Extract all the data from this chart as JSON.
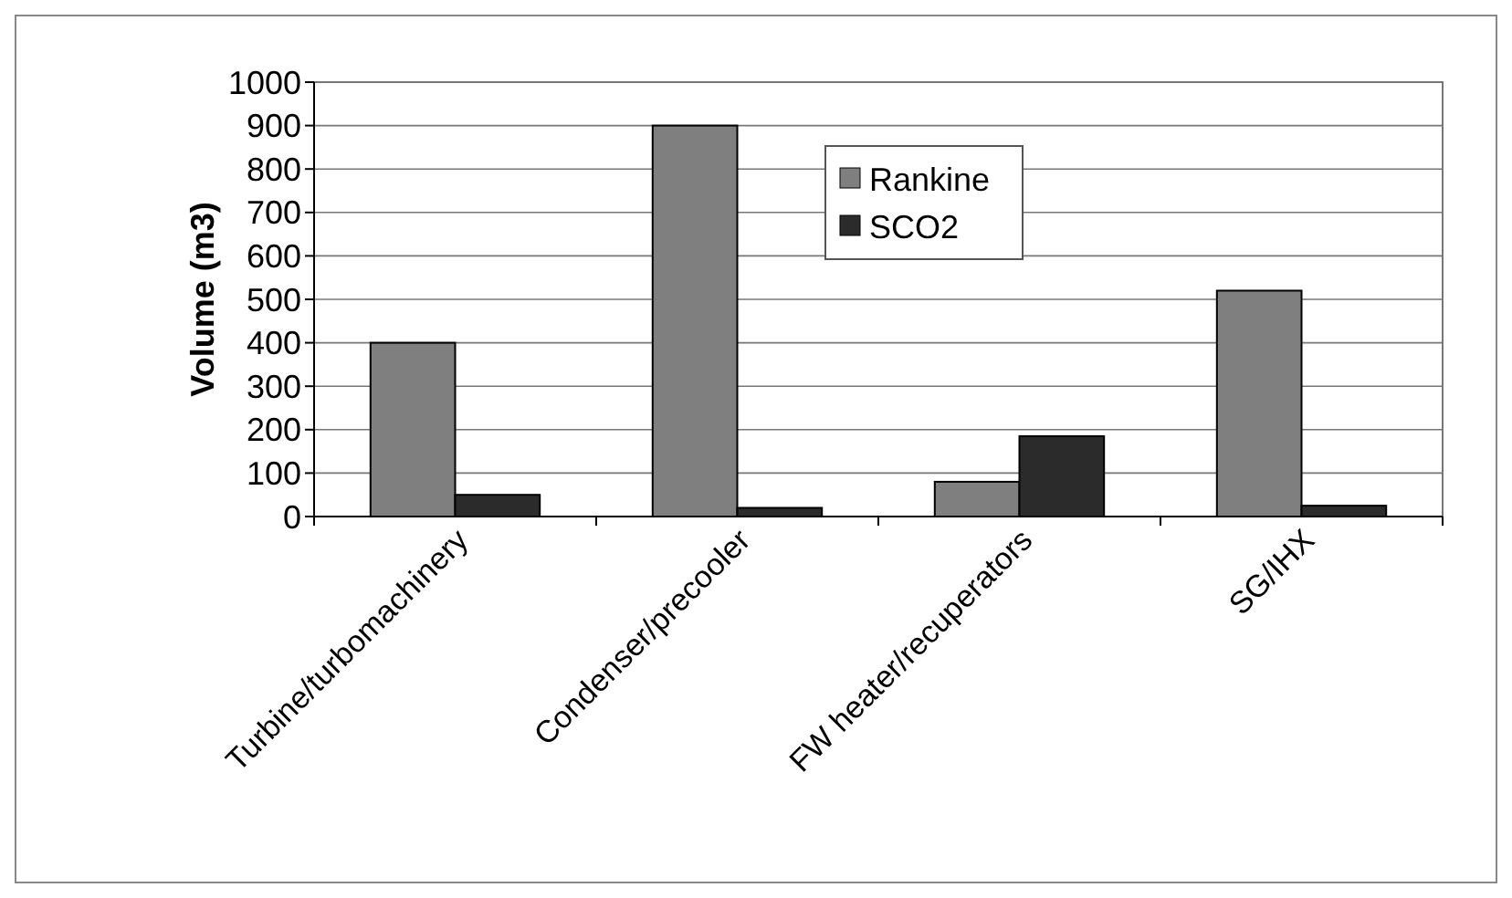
{
  "chart_data": {
    "type": "bar",
    "ylabel": "Volume (m3)",
    "categories": [
      "Turbine/turbomachinery",
      "Condenser/precooler",
      "FW heater/recuperators",
      "SG/IHX"
    ],
    "series": [
      {
        "name": "Rankine",
        "color": "#7f7f7f",
        "values": [
          400,
          900,
          80,
          520
        ]
      },
      {
        "name": "SCO2",
        "color": "#2b2b2b",
        "values": [
          50,
          20,
          185,
          25
        ]
      }
    ],
    "ylim": [
      0,
      1000
    ],
    "yticks": [
      0,
      100,
      200,
      300,
      400,
      500,
      600,
      700,
      800,
      900,
      1000
    ],
    "grid": "y",
    "legend": "top"
  }
}
